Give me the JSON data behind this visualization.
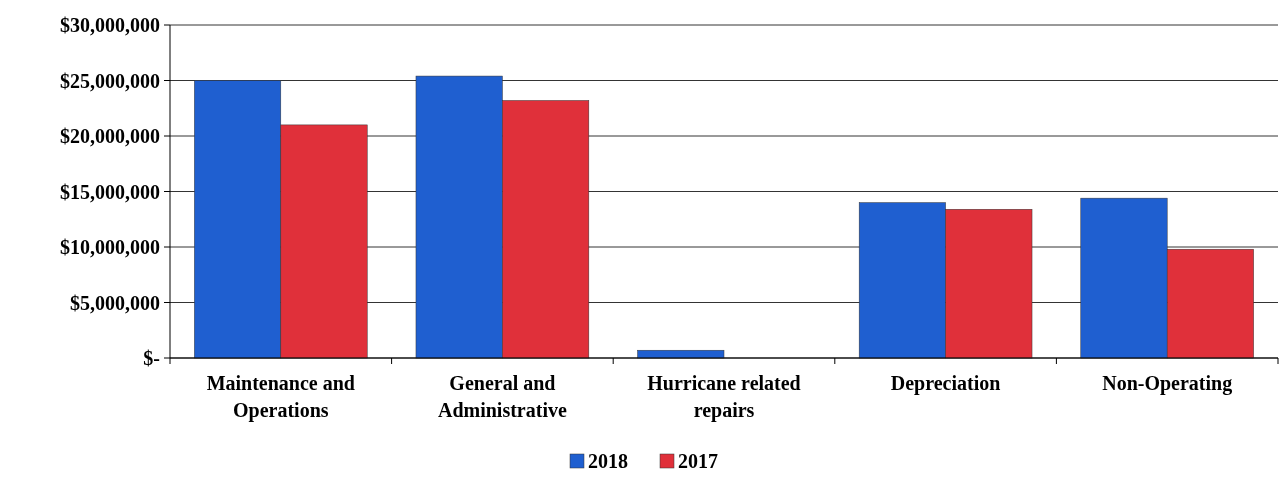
{
  "chart_data": {
    "type": "bar",
    "categories": [
      "Maintenance and Operations",
      "General and Administrative",
      "Hurricane related repairs",
      "Depreciation",
      "Non-Operating"
    ],
    "series": [
      {
        "name": "2018",
        "color": "#1f5fd0",
        "values": [
          25000000,
          25400000,
          700000,
          14000000,
          14400000
        ]
      },
      {
        "name": "2017",
        "color": "#e0303a",
        "values": [
          21000000,
          23200000,
          0,
          13400000,
          9800000
        ]
      }
    ],
    "ylim": [
      0,
      30000000
    ],
    "yticks": [
      {
        "value": 0,
        "label": "$-"
      },
      {
        "value": 5000000,
        "label": "$5,000,000"
      },
      {
        "value": 10000000,
        "label": "$10,000,000"
      },
      {
        "value": 15000000,
        "label": "$15,000,000"
      },
      {
        "value": 20000000,
        "label": "$20,000,000"
      },
      {
        "value": 25000000,
        "label": "$25,000,000"
      },
      {
        "value": 30000000,
        "label": "$30,000,000"
      }
    ],
    "grid": "y",
    "legend": "bottom"
  }
}
